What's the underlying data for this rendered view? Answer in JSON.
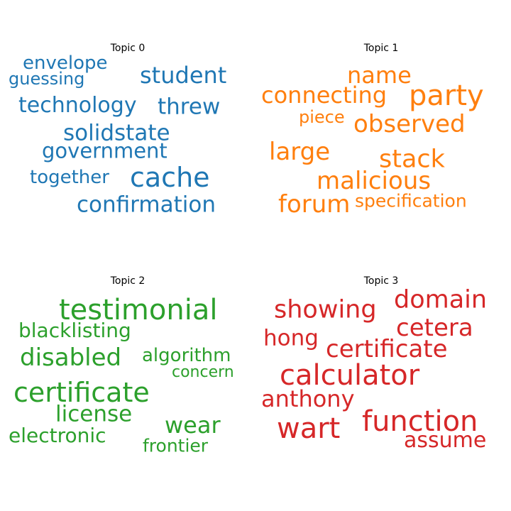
{
  "topics": [
    {
      "title": "Topic 0",
      "color": "#1f77b4",
      "words": [
        "envelope",
        "guessing",
        "student",
        "technology",
        "threw",
        "solidstate",
        "government",
        "together",
        "cache",
        "confirmation"
      ]
    },
    {
      "title": "Topic 1",
      "color": "#ff7f0e",
      "words": [
        "name",
        "connecting",
        "party",
        "piece",
        "observed",
        "large",
        "stack",
        "malicious",
        "forum",
        "specification"
      ]
    },
    {
      "title": "Topic 2",
      "color": "#2ca02c",
      "words": [
        "testimonial",
        "blacklisting",
        "disabled",
        "algorithm",
        "concern",
        "certificate",
        "license",
        "wear",
        "electronic",
        "frontier"
      ]
    },
    {
      "title": "Topic 3",
      "color": "#d62728",
      "words": [
        "showing",
        "domain",
        "hong",
        "cetera",
        "certificate",
        "calculator",
        "anthony",
        "wart",
        "function",
        "assume"
      ]
    }
  ]
}
